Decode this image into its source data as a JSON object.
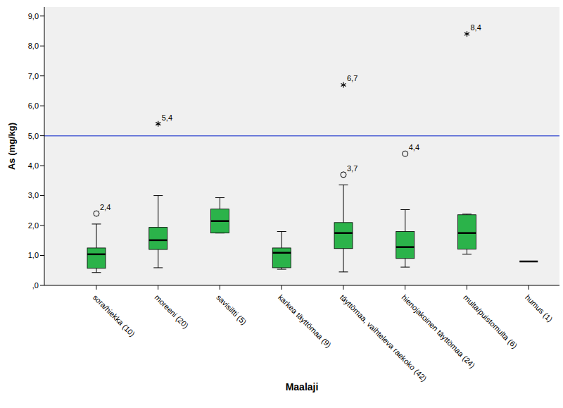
{
  "chart_data": {
    "type": "boxplot",
    "x_label": "Maalaji",
    "y_label": "As (mg/kg)",
    "categories": [
      "sora/hiekka (10)",
      "moreeni (20)",
      "savisiltti (5)",
      "karkea täyttömaa (9)",
      "täyttömaa, vaihteleva raekoko (42)",
      "hienojakoinen täyttömaa (24)",
      "multa/puistomulta (6)",
      "humus (1)"
    ],
    "boxes": [
      {
        "min": 0.43,
        "q1": 0.57,
        "median": 1.04,
        "q3": 1.25,
        "max": 2.05,
        "outliers": [
          {
            "value": 2.4,
            "label": "2,4",
            "marker": "circle"
          }
        ]
      },
      {
        "min": 0.59,
        "q1": 1.2,
        "median": 1.51,
        "q3": 1.94,
        "max": 3.0,
        "outliers": [
          {
            "value": 5.4,
            "label": "5,4",
            "marker": "star"
          }
        ]
      },
      {
        "min": 1.75,
        "q1": 1.75,
        "median": 2.15,
        "q3": 2.55,
        "max": 2.93,
        "outliers": []
      },
      {
        "min": 0.54,
        "q1": 0.59,
        "median": 1.09,
        "q3": 1.25,
        "max": 1.8,
        "outliers": []
      },
      {
        "min": 0.45,
        "q1": 1.23,
        "median": 1.75,
        "q3": 2.1,
        "max": 3.36,
        "outliers": [
          {
            "value": 3.7,
            "label": "3,7",
            "marker": "circle"
          },
          {
            "value": 6.7,
            "label": "6,7",
            "marker": "star"
          }
        ]
      },
      {
        "min": 0.61,
        "q1": 0.9,
        "median": 1.28,
        "q3": 1.8,
        "max": 2.53,
        "outliers": [
          {
            "value": 4.4,
            "label": "4,4",
            "marker": "circle"
          }
        ]
      },
      {
        "min": 1.04,
        "q1": 1.21,
        "median": 1.75,
        "q3": 2.36,
        "max": 2.38,
        "outliers": [
          {
            "value": 8.4,
            "label": "8,4",
            "marker": "star"
          }
        ]
      },
      {
        "min": 0.8,
        "q1": 0.8,
        "median": 0.8,
        "q3": 0.8,
        "max": 0.8,
        "outliers": []
      }
    ],
    "color": "#2bb34a",
    "reference_line": {
      "value": 5,
      "color": "#5264d6"
    },
    "ylim": [
      0,
      9.3
    ],
    "yticks": [
      {
        "value": 0,
        "label": ",0"
      },
      {
        "value": 1,
        "label": "1,0"
      },
      {
        "value": 2,
        "label": "2,0"
      },
      {
        "value": 3,
        "label": "3,0"
      },
      {
        "value": 4,
        "label": "4,0"
      },
      {
        "value": 5,
        "label": "5,0"
      },
      {
        "value": 6,
        "label": "6,0"
      },
      {
        "value": 7,
        "label": "7,0"
      },
      {
        "value": 8,
        "label": "8,0"
      },
      {
        "value": 9,
        "label": "9,0"
      }
    ],
    "grid": false
  }
}
